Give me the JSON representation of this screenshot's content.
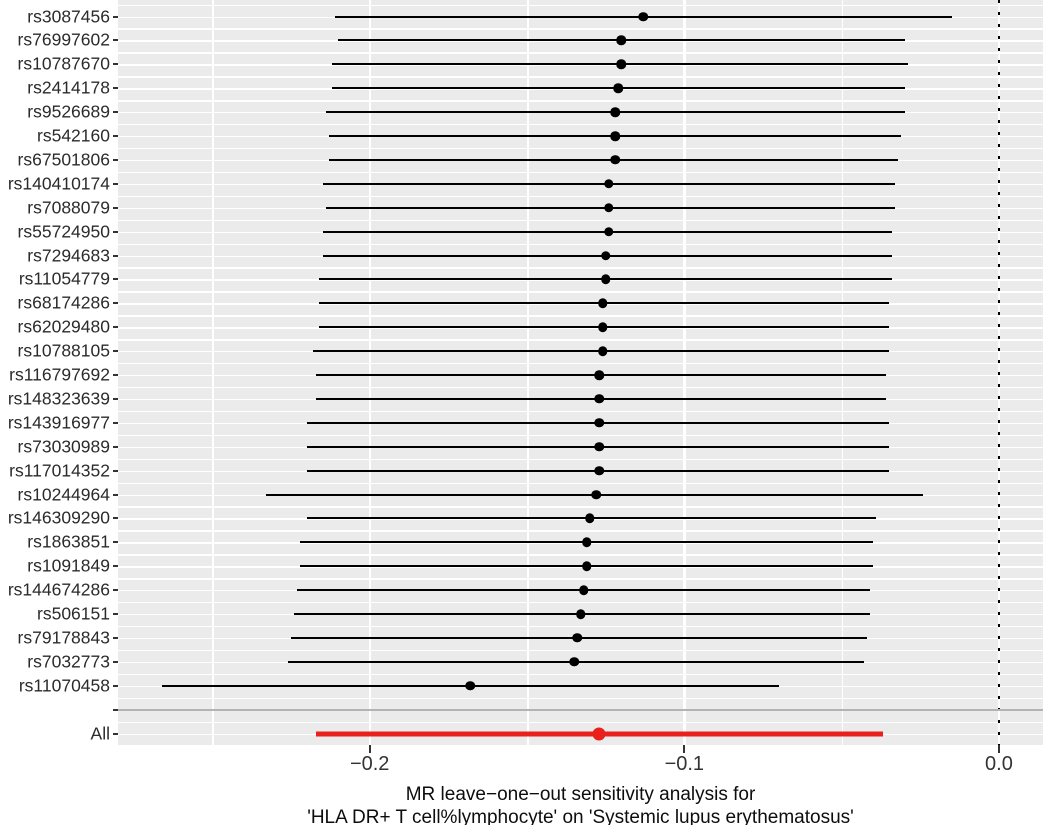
{
  "chart_data": {
    "type": "forest",
    "title": "",
    "xlabel_line1": "MR leave−one−out sensitivity analysis for",
    "xlabel_line2": "'HLA DR+ T cell%lymphocyte' on 'Systemic lupus erythematosus'",
    "x_axis": {
      "ticks": [
        {
          "value": -0.2,
          "label": "−0.2"
        },
        {
          "value": -0.1,
          "label": "−0.1"
        },
        {
          "value": 0.0,
          "label": "0.0"
        }
      ],
      "minor_gridlines": [
        -0.25,
        -0.15,
        -0.05
      ],
      "xlim": [
        -0.28,
        0.014
      ],
      "zero_reference_line": 0.0
    },
    "grid": "on",
    "legend": "none",
    "rows": [
      {
        "label": "rs3087456",
        "lo": -0.211,
        "b": -0.113,
        "hi": -0.015
      },
      {
        "label": "rs76997602",
        "lo": -0.21,
        "b": -0.12,
        "hi": -0.03
      },
      {
        "label": "rs10787670",
        "lo": -0.212,
        "b": -0.12,
        "hi": -0.029
      },
      {
        "label": "rs2414178",
        "lo": -0.212,
        "b": -0.121,
        "hi": -0.03
      },
      {
        "label": "rs9526689",
        "lo": -0.214,
        "b": -0.122,
        "hi": -0.03
      },
      {
        "label": "rs542160",
        "lo": -0.213,
        "b": -0.122,
        "hi": -0.031
      },
      {
        "label": "rs67501806",
        "lo": -0.213,
        "b": -0.122,
        "hi": -0.032
      },
      {
        "label": "rs140410174",
        "lo": -0.215,
        "b": -0.124,
        "hi": -0.033
      },
      {
        "label": "rs7088079",
        "lo": -0.214,
        "b": -0.124,
        "hi": -0.033
      },
      {
        "label": "rs55724950",
        "lo": -0.215,
        "b": -0.124,
        "hi": -0.034
      },
      {
        "label": "rs7294683",
        "lo": -0.215,
        "b": -0.125,
        "hi": -0.034
      },
      {
        "label": "rs11054779",
        "lo": -0.216,
        "b": -0.125,
        "hi": -0.034
      },
      {
        "label": "rs68174286",
        "lo": -0.216,
        "b": -0.126,
        "hi": -0.035
      },
      {
        "label": "rs62029480",
        "lo": -0.216,
        "b": -0.126,
        "hi": -0.035
      },
      {
        "label": "rs10788105",
        "lo": -0.218,
        "b": -0.126,
        "hi": -0.035
      },
      {
        "label": "rs116797692",
        "lo": -0.217,
        "b": -0.127,
        "hi": -0.036
      },
      {
        "label": "rs148323639",
        "lo": -0.217,
        "b": -0.127,
        "hi": -0.036
      },
      {
        "label": "rs143916977",
        "lo": -0.22,
        "b": -0.127,
        "hi": -0.035
      },
      {
        "label": "rs73030989",
        "lo": -0.22,
        "b": -0.127,
        "hi": -0.035
      },
      {
        "label": "rs117014352",
        "lo": -0.22,
        "b": -0.127,
        "hi": -0.035
      },
      {
        "label": "rs10244964",
        "lo": -0.233,
        "b": -0.128,
        "hi": -0.024
      },
      {
        "label": "rs146309290",
        "lo": -0.22,
        "b": -0.13,
        "hi": -0.039
      },
      {
        "label": "rs1863851",
        "lo": -0.222,
        "b": -0.131,
        "hi": -0.04
      },
      {
        "label": "rs1091849",
        "lo": -0.222,
        "b": -0.131,
        "hi": -0.04
      },
      {
        "label": "rs144674286",
        "lo": -0.223,
        "b": -0.132,
        "hi": -0.041
      },
      {
        "label": "rs506151",
        "lo": -0.224,
        "b": -0.133,
        "hi": -0.041
      },
      {
        "label": "rs79178843",
        "lo": -0.225,
        "b": -0.134,
        "hi": -0.042
      },
      {
        "label": "rs7032773",
        "lo": -0.226,
        "b": -0.135,
        "hi": -0.043
      },
      {
        "label": "rs11070458",
        "lo": -0.266,
        "b": -0.168,
        "hi": -0.07
      },
      {
        "label": "",
        "separator": true
      },
      {
        "label": "All",
        "lo": -0.217,
        "b": -0.127,
        "hi": -0.037,
        "highlight": true
      }
    ],
    "colors": {
      "panel_bg": "#ebebeb",
      "gridline": "#ffffff",
      "estimate": "#000000",
      "all_row": "#e8211d",
      "separator_line": "#b3b3b3",
      "zero_line": "#000000",
      "axis_text": "#333333",
      "label_text": "#2b2b2b",
      "caption_text": "#0d0d0d"
    }
  }
}
